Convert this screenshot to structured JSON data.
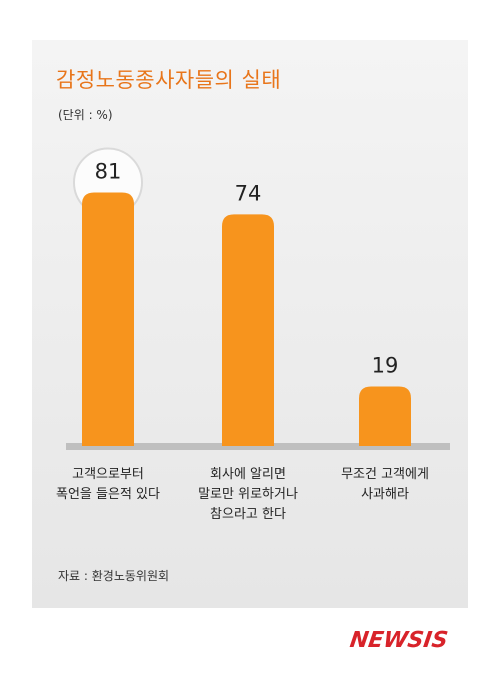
{
  "title": "감정노동종사자들의 실태",
  "unit": "(단위 : %)",
  "source": "자료 : 환경노동위원회",
  "logo": "NEWSIS",
  "colors": {
    "bar": "#f7941d",
    "title": "#e8751a",
    "baseline": "#9a9a9a",
    "logo": "#d8232a"
  },
  "chart_data": {
    "type": "bar",
    "categories": [
      "고객으로부터\n폭언을 들은적 있다",
      "회사에 알리면\n말로만 위로하거나\n참으라고 한다",
      "무조건 고객에게\n사과해라"
    ],
    "values": [
      81,
      74,
      19
    ],
    "ylim": [
      0,
      100
    ],
    "highlight_index": 0
  }
}
